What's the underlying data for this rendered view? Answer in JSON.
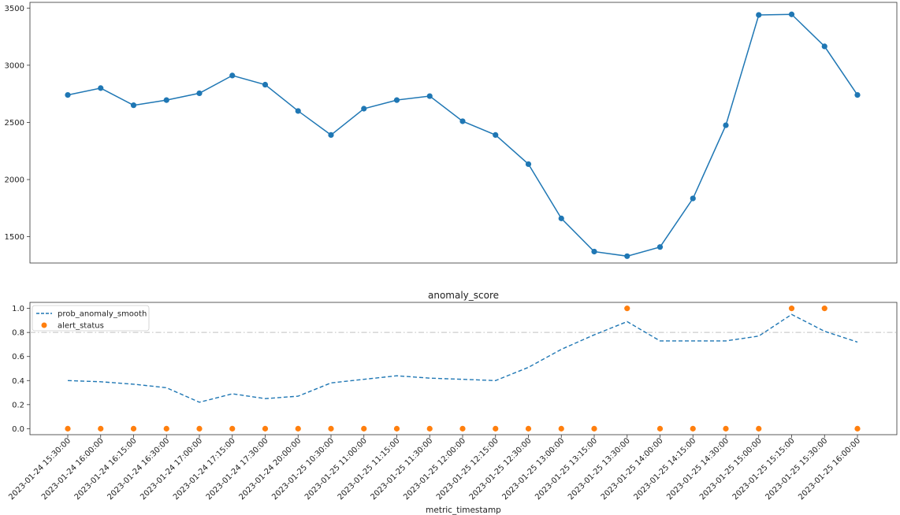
{
  "colors": {
    "series_blue": "#1f77b4",
    "series_orange": "#ff7f0e",
    "threshold_gray": "#c0c0c0",
    "axis": "#333333"
  },
  "x_ticks": [
    "2023-01-24 15:30:00",
    "2023-01-24 16:00:00",
    "2023-01-24 16:15:00",
    "2023-01-24 16:30:00",
    "2023-01-24 17:00:00",
    "2023-01-24 17:15:00",
    "2023-01-24 17:30:00",
    "2023-01-24 20:00:00",
    "2023-01-25 10:30:00",
    "2023-01-25 11:00:00",
    "2023-01-25 11:15:00",
    "2023-01-25 11:30:00",
    "2023-01-25 12:00:00",
    "2023-01-25 12:15:00",
    "2023-01-25 12:30:00",
    "2023-01-25 13:00:00",
    "2023-01-25 13:15:00",
    "2023-01-25 13:30:00",
    "2023-01-25 14:00:00",
    "2023-01-25 14:15:00",
    "2023-01-25 14:30:00",
    "2023-01-25 15:00:00",
    "2023-01-25 15:15:00",
    "2023-01-25 15:30:00",
    "2023-01-25 16:00:00"
  ],
  "chart_data": [
    {
      "type": "line",
      "title": "",
      "xlabel": "",
      "ylabel": "",
      "ylim": [
        1270,
        3550
      ],
      "yticks": [
        1500,
        2000,
        2500,
        3000,
        3500
      ],
      "grid": false,
      "series": [
        {
          "values": [
            2740,
            2800,
            2650,
            2695,
            2755,
            2910,
            2830,
            2600,
            2390,
            2620,
            2695,
            2730,
            2510,
            2390,
            2135,
            1660,
            1370,
            1330,
            1410,
            1835,
            2475,
            3440,
            3445,
            3165,
            2740
          ],
          "marker": "circle"
        }
      ]
    },
    {
      "type": "line",
      "title": "anomaly_score",
      "xlabel": "metric_timestamp",
      "ylabel": "",
      "ylim": [
        -0.05,
        1.05
      ],
      "yticks": [
        "0.0",
        "0.2",
        "0.4",
        "0.6",
        "0.8",
        "1.0"
      ],
      "ytick_values": [
        0.0,
        0.2,
        0.4,
        0.6,
        0.8,
        1.0
      ],
      "grid": false,
      "legend": "top-left",
      "threshold": 0.8,
      "series": [
        {
          "name": "prob_anomaly_smooth",
          "style": "dashed",
          "values": [
            0.4,
            0.39,
            0.37,
            0.34,
            0.22,
            0.29,
            0.25,
            0.27,
            0.38,
            0.41,
            0.44,
            0.42,
            0.41,
            0.4,
            0.51,
            0.66,
            0.78,
            0.89,
            0.73,
            0.73,
            0.73,
            0.77,
            0.95,
            0.81,
            0.72
          ]
        },
        {
          "name": "alert_status",
          "style": "scatter",
          "values": [
            0,
            0,
            0,
            0,
            0,
            0,
            0,
            0,
            0,
            0,
            0,
            0,
            0,
            0,
            0,
            0,
            0,
            1,
            0,
            0,
            0,
            0,
            1,
            1,
            0
          ]
        }
      ]
    }
  ]
}
